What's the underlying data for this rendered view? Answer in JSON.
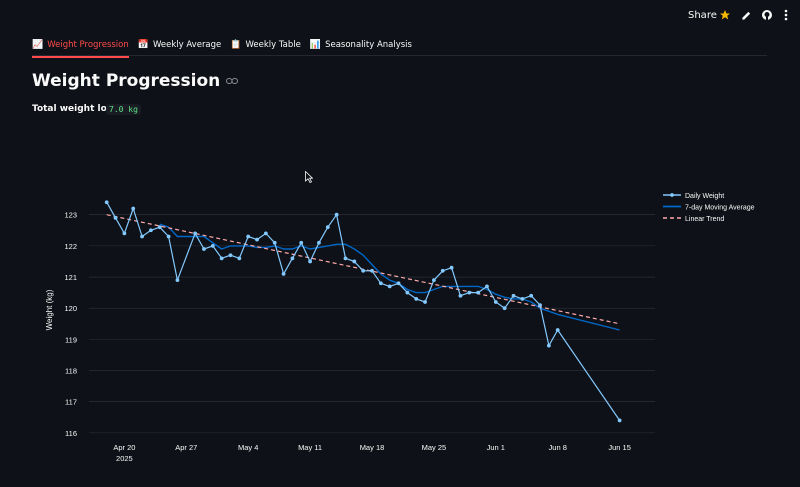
{
  "header": {
    "share_label": "Share",
    "icons": [
      "star-icon",
      "pencil-icon",
      "github-icon",
      "more-vertical-icon"
    ]
  },
  "tabs": [
    {
      "emoji": "📈",
      "label": "Weight Progression",
      "active": true
    },
    {
      "emoji": "📅",
      "label": "Weekly Average",
      "active": false
    },
    {
      "emoji": "📋",
      "label": "Weekly Table",
      "active": false
    },
    {
      "emoji": "📊",
      "label": "Seasonality Analysis",
      "active": false
    }
  ],
  "page": {
    "title": "Weight Progression",
    "lost_label": "Total weight lost:",
    "lost_value": "7.0 kg"
  },
  "colors": {
    "accent": "#ff4b4b",
    "daily": "#83c9ff",
    "moving": "#0068c9",
    "trend": "#ffabab",
    "lost_value": "#5ce488"
  },
  "chart_data": {
    "type": "line",
    "ylabel": "Weight (kg)",
    "xlabel": "",
    "ylim": [
      115.9,
      123.6
    ],
    "xlim": [
      "2025-04-16",
      "2025-06-19"
    ],
    "y_ticks": [
      116,
      117,
      118,
      119,
      120,
      121,
      122,
      123
    ],
    "x_ticks": [
      {
        "date": "2025-04-20",
        "label": "Apr 20",
        "sub": "2025"
      },
      {
        "date": "2025-04-27",
        "label": "Apr 27",
        "sub": ""
      },
      {
        "date": "2025-05-04",
        "label": "May 4",
        "sub": ""
      },
      {
        "date": "2025-05-11",
        "label": "May 11",
        "sub": ""
      },
      {
        "date": "2025-05-18",
        "label": "May 18",
        "sub": ""
      },
      {
        "date": "2025-05-25",
        "label": "May 25",
        "sub": ""
      },
      {
        "date": "2025-06-01",
        "label": "Jun 1",
        "sub": ""
      },
      {
        "date": "2025-06-08",
        "label": "Jun 8",
        "sub": ""
      },
      {
        "date": "2025-06-15",
        "label": "Jun 15",
        "sub": ""
      }
    ],
    "legend": {
      "placement": "right",
      "entries": [
        "Daily Weight",
        "7-day Moving Average",
        "Linear Trend"
      ]
    },
    "series": [
      {
        "name": "Daily Weight",
        "style": "line+markers",
        "x": [
          "2025-04-18",
          "2025-04-19",
          "2025-04-20",
          "2025-04-21",
          "2025-04-22",
          "2025-04-23",
          "2025-04-24",
          "2025-04-25",
          "2025-04-26",
          "2025-04-28",
          "2025-04-29",
          "2025-04-30",
          "2025-05-01",
          "2025-05-02",
          "2025-05-03",
          "2025-05-04",
          "2025-05-05",
          "2025-05-06",
          "2025-05-07",
          "2025-05-08",
          "2025-05-09",
          "2025-05-10",
          "2025-05-11",
          "2025-05-12",
          "2025-05-13",
          "2025-05-14",
          "2025-05-15",
          "2025-05-16",
          "2025-05-17",
          "2025-05-18",
          "2025-05-19",
          "2025-05-20",
          "2025-05-21",
          "2025-05-22",
          "2025-05-23",
          "2025-05-24",
          "2025-05-25",
          "2025-05-26",
          "2025-05-27",
          "2025-05-28",
          "2025-05-29",
          "2025-05-30",
          "2025-05-31",
          "2025-06-01",
          "2025-06-02",
          "2025-06-03",
          "2025-06-04",
          "2025-06-05",
          "2025-06-06",
          "2025-06-07",
          "2025-06-08",
          "2025-06-15"
        ],
        "y": [
          123.4,
          122.9,
          122.4,
          123.2,
          122.3,
          122.5,
          122.6,
          122.3,
          120.9,
          122.4,
          121.9,
          122.0,
          121.6,
          121.7,
          121.6,
          122.3,
          122.2,
          122.4,
          122.1,
          121.1,
          121.6,
          122.1,
          121.5,
          122.1,
          122.6,
          123.0,
          121.6,
          121.5,
          121.2,
          121.2,
          120.8,
          120.7,
          120.8,
          120.5,
          120.3,
          120.2,
          120.9,
          121.2,
          121.3,
          120.4,
          120.5,
          120.5,
          120.7,
          120.2,
          120.0,
          120.4,
          120.3,
          120.4,
          120.1,
          118.8,
          119.3,
          116.4
        ]
      },
      {
        "name": "7-day Moving Average",
        "style": "line",
        "x": [
          "2025-04-24",
          "2025-04-25",
          "2025-04-26",
          "2025-04-28",
          "2025-04-29",
          "2025-04-30",
          "2025-05-01",
          "2025-05-02",
          "2025-05-03",
          "2025-05-04",
          "2025-05-05",
          "2025-05-06",
          "2025-05-07",
          "2025-05-08",
          "2025-05-09",
          "2025-05-10",
          "2025-05-11",
          "2025-05-12",
          "2025-05-13",
          "2025-05-14",
          "2025-05-15",
          "2025-05-16",
          "2025-05-17",
          "2025-05-18",
          "2025-05-19",
          "2025-05-20",
          "2025-05-21",
          "2025-05-22",
          "2025-05-23",
          "2025-05-24",
          "2025-05-25",
          "2025-05-26",
          "2025-05-27",
          "2025-05-28",
          "2025-05-29",
          "2025-05-30",
          "2025-05-31",
          "2025-06-01",
          "2025-06-02",
          "2025-06-03",
          "2025-06-04",
          "2025-06-05",
          "2025-06-06",
          "2025-06-07",
          "2025-06-08",
          "2025-06-15"
        ],
        "y": [
          122.7,
          122.6,
          122.3,
          122.3,
          122.3,
          122.1,
          121.9,
          122.0,
          122.0,
          122.0,
          121.95,
          121.95,
          122.0,
          121.9,
          121.9,
          122.0,
          121.9,
          121.95,
          122.0,
          122.05,
          122.05,
          121.9,
          121.7,
          121.4,
          121.1,
          120.9,
          120.8,
          120.6,
          120.5,
          120.5,
          120.6,
          120.7,
          120.7,
          120.7,
          120.7,
          120.7,
          120.6,
          120.45,
          120.35,
          120.3,
          120.3,
          120.2,
          120.0,
          119.9,
          119.8,
          119.3
        ]
      },
      {
        "name": "Linear Trend",
        "style": "dashed",
        "x": [
          "2025-04-18",
          "2025-06-15"
        ],
        "y": [
          123.0,
          119.5
        ]
      }
    ]
  }
}
